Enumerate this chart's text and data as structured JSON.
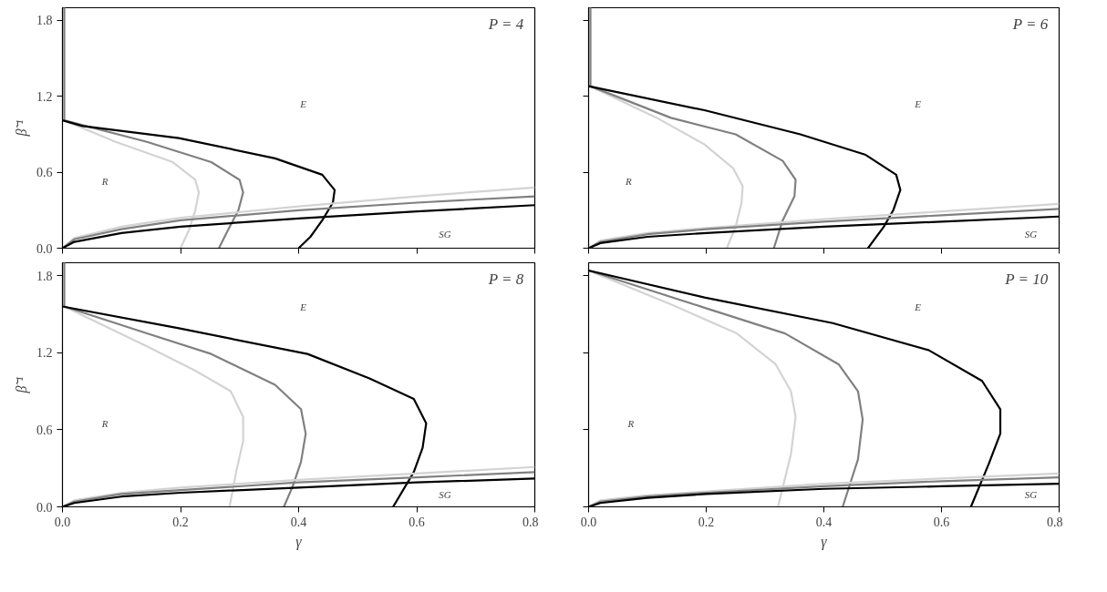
{
  "chart_data": [
    {
      "type": "line",
      "ylabel": "β̃⁻¹",
      "xlim": [
        0,
        0.8
      ],
      "ylim": [
        0,
        1.9
      ],
      "xticks": [
        0.0,
        0.2,
        0.4,
        0.6,
        0.8
      ],
      "yticks": [
        {
          "value": 0,
          "label": "0.0"
        },
        0.6,
        1.2,
        1.8
      ],
      "tick_labels": "y",
      "grid": false,
      "annotations": [
        "P = 4",
        "E",
        "R",
        "SG"
      ],
      "series": [
        {
          "color": "#d3d3d3",
          "x": [
            0.003,
            0.003,
            0.09,
            0.187,
            0.225,
            0.231,
            0.225,
            0.214,
            0.2
          ],
          "values": [
            1.9,
            1.01,
            0.84,
            0.68,
            0.54,
            0.44,
            0.3,
            0.14,
            0.0
          ]
        },
        {
          "color": "#808080",
          "x": [
            0.003,
            0.003,
            0.143,
            0.252,
            0.3,
            0.306,
            0.298,
            0.28,
            0.265
          ],
          "values": [
            1.9,
            1.01,
            0.84,
            0.68,
            0.54,
            0.44,
            0.3,
            0.14,
            0.0
          ]
        },
        {
          "color": "#000000",
          "x": [
            0.0,
            0.034,
            0.197,
            0.36,
            0.44,
            0.461,
            0.458,
            0.44,
            0.42,
            0.4
          ],
          "values": [
            1.01,
            0.965,
            0.87,
            0.71,
            0.58,
            0.46,
            0.36,
            0.22,
            0.09,
            0.0
          ]
        },
        {
          "color": "#d3d3d3",
          "x": [
            0,
            0.02,
            0.1,
            0.2,
            0.4,
            0.6,
            0.8
          ],
          "values": [
            0,
            0.08,
            0.17,
            0.24,
            0.33,
            0.41,
            0.48
          ]
        },
        {
          "color": "#808080",
          "x": [
            0,
            0.02,
            0.1,
            0.2,
            0.4,
            0.6,
            0.8
          ],
          "values": [
            0,
            0.07,
            0.15,
            0.22,
            0.3,
            0.36,
            0.41
          ]
        },
        {
          "color": "#000000",
          "x": [
            0,
            0.02,
            0.1,
            0.2,
            0.4,
            0.6,
            0.8
          ],
          "values": [
            0,
            0.05,
            0.12,
            0.17,
            0.235,
            0.29,
            0.34
          ]
        }
      ]
    },
    {
      "type": "line",
      "xlim": [
        0,
        0.8
      ],
      "ylim": [
        0,
        1.9
      ],
      "xticks": [
        0.0,
        0.2,
        0.4,
        0.6,
        0.8
      ],
      "yticks": [
        0.0,
        0.6,
        1.2,
        1.8
      ],
      "tick_labels": false,
      "grid": false,
      "annotations": [
        "P = 6",
        "E",
        "R",
        "SG"
      ],
      "series": [
        {
          "color": "#d3d3d3",
          "x": [
            0.003,
            0.003,
            0.116,
            0.197,
            0.246,
            0.262,
            0.26,
            0.25,
            0.235
          ],
          "values": [
            1.9,
            1.28,
            1.03,
            0.82,
            0.63,
            0.49,
            0.36,
            0.17,
            0.0
          ]
        },
        {
          "color": "#808080",
          "x": [
            0.003,
            0.003,
            0.14,
            0.25,
            0.33,
            0.352,
            0.35,
            0.33,
            0.315
          ],
          "values": [
            1.9,
            1.28,
            1.03,
            0.9,
            0.69,
            0.54,
            0.41,
            0.22,
            0.0
          ]
        },
        {
          "color": "#000000",
          "x": [
            0.0,
            0.197,
            0.36,
            0.47,
            0.523,
            0.53,
            0.518,
            0.502,
            0.475
          ],
          "values": [
            1.28,
            1.09,
            0.9,
            0.74,
            0.58,
            0.46,
            0.3,
            0.17,
            0.0
          ]
        },
        {
          "color": "#d3d3d3",
          "x": [
            0,
            0.02,
            0.1,
            0.2,
            0.4,
            0.6,
            0.8
          ],
          "values": [
            0,
            0.06,
            0.12,
            0.16,
            0.23,
            0.29,
            0.35
          ]
        },
        {
          "color": "#808080",
          "x": [
            0,
            0.02,
            0.1,
            0.2,
            0.4,
            0.6,
            0.8
          ],
          "values": [
            0,
            0.05,
            0.11,
            0.15,
            0.21,
            0.26,
            0.31
          ]
        },
        {
          "color": "#000000",
          "x": [
            0,
            0.02,
            0.1,
            0.2,
            0.4,
            0.6,
            0.8
          ],
          "values": [
            0,
            0.04,
            0.09,
            0.12,
            0.17,
            0.21,
            0.25
          ]
        }
      ]
    },
    {
      "type": "line",
      "xlabel": "γ",
      "ylabel": "β̃⁻¹",
      "xlim": [
        0,
        0.8
      ],
      "ylim": [
        0,
        1.9
      ],
      "xticks": [
        {
          "value": 0,
          "label": "0.0"
        },
        0.2,
        0.4,
        0.6,
        0.8
      ],
      "yticks": [
        {
          "value": 0,
          "label": "0.0"
        },
        0.6,
        1.2,
        1.8
      ],
      "grid": false,
      "annotations": [
        "P = 8",
        "E",
        "R",
        "SG"
      ],
      "series": [
        {
          "color": "#d3d3d3",
          "x": [
            0.003,
            0.003,
            0.143,
            0.225,
            0.285,
            0.306,
            0.306,
            0.295,
            0.283
          ],
          "values": [
            1.9,
            1.56,
            1.25,
            1.06,
            0.9,
            0.7,
            0.51,
            0.29,
            0.0
          ]
        },
        {
          "color": "#808080",
          "x": [
            0.003,
            0.003,
            0.143,
            0.252,
            0.36,
            0.404,
            0.412,
            0.404,
            0.39,
            0.375
          ],
          "values": [
            1.9,
            1.56,
            1.35,
            1.19,
            0.95,
            0.76,
            0.57,
            0.35,
            0.16,
            0.0
          ]
        },
        {
          "color": "#000000",
          "x": [
            0.0,
            0.197,
            0.415,
            0.52,
            0.595,
            0.616,
            0.61,
            0.595,
            0.56
          ],
          "values": [
            1.56,
            1.39,
            1.19,
            1.0,
            0.84,
            0.65,
            0.46,
            0.27,
            0.0
          ]
        },
        {
          "color": "#d3d3d3",
          "x": [
            0,
            0.02,
            0.1,
            0.2,
            0.4,
            0.6,
            0.8
          ],
          "values": [
            0,
            0.05,
            0.11,
            0.15,
            0.21,
            0.26,
            0.31
          ]
        },
        {
          "color": "#808080",
          "x": [
            0,
            0.02,
            0.1,
            0.2,
            0.4,
            0.6,
            0.8
          ],
          "values": [
            0,
            0.04,
            0.1,
            0.13,
            0.19,
            0.23,
            0.27
          ]
        },
        {
          "color": "#000000",
          "x": [
            0,
            0.02,
            0.1,
            0.2,
            0.4,
            0.6,
            0.8
          ],
          "values": [
            0,
            0.03,
            0.08,
            0.11,
            0.15,
            0.19,
            0.22
          ]
        }
      ]
    },
    {
      "type": "line",
      "xlabel": "γ",
      "xlim": [
        0,
        0.8
      ],
      "ylim": [
        0,
        1.9
      ],
      "xticks": [
        {
          "value": 0,
          "label": "0.0"
        },
        0.2,
        0.4,
        0.6,
        0.8
      ],
      "yticks": [
        0.0,
        0.6,
        1.2,
        1.8
      ],
      "tick_labels": "x",
      "grid": false,
      "annotations": [
        "P = 10",
        "E",
        "R",
        "SG"
      ],
      "series": [
        {
          "color": "#d3d3d3",
          "x": [
            0.0,
            0.143,
            0.252,
            0.318,
            0.344,
            0.352,
            0.344,
            0.322
          ],
          "values": [
            1.84,
            1.57,
            1.35,
            1.11,
            0.9,
            0.7,
            0.41,
            0.0
          ]
        },
        {
          "color": "#808080",
          "x": [
            0.0,
            0.197,
            0.334,
            0.425,
            0.458,
            0.466,
            0.458,
            0.432
          ],
          "values": [
            1.84,
            1.55,
            1.35,
            1.11,
            0.9,
            0.68,
            0.37,
            0.0
          ]
        },
        {
          "color": "#000000",
          "x": [
            0.0,
            0.197,
            0.415,
            0.578,
            0.669,
            0.7,
            0.7,
            0.68,
            0.65
          ],
          "values": [
            1.84,
            1.63,
            1.43,
            1.22,
            0.98,
            0.76,
            0.57,
            0.33,
            0.0
          ]
        },
        {
          "color": "#d3d3d3",
          "x": [
            0,
            0.02,
            0.1,
            0.2,
            0.4,
            0.6,
            0.8
          ],
          "values": [
            0,
            0.05,
            0.09,
            0.12,
            0.18,
            0.22,
            0.26
          ]
        },
        {
          "color": "#808080",
          "x": [
            0,
            0.02,
            0.1,
            0.2,
            0.4,
            0.6,
            0.8
          ],
          "values": [
            0,
            0.04,
            0.08,
            0.11,
            0.16,
            0.2,
            0.23
          ]
        },
        {
          "color": "#000000",
          "x": [
            0,
            0.02,
            0.1,
            0.2,
            0.4,
            0.6,
            0.8
          ],
          "values": [
            0,
            0.03,
            0.07,
            0.1,
            0.14,
            0.16,
            0.18
          ]
        }
      ]
    }
  ]
}
